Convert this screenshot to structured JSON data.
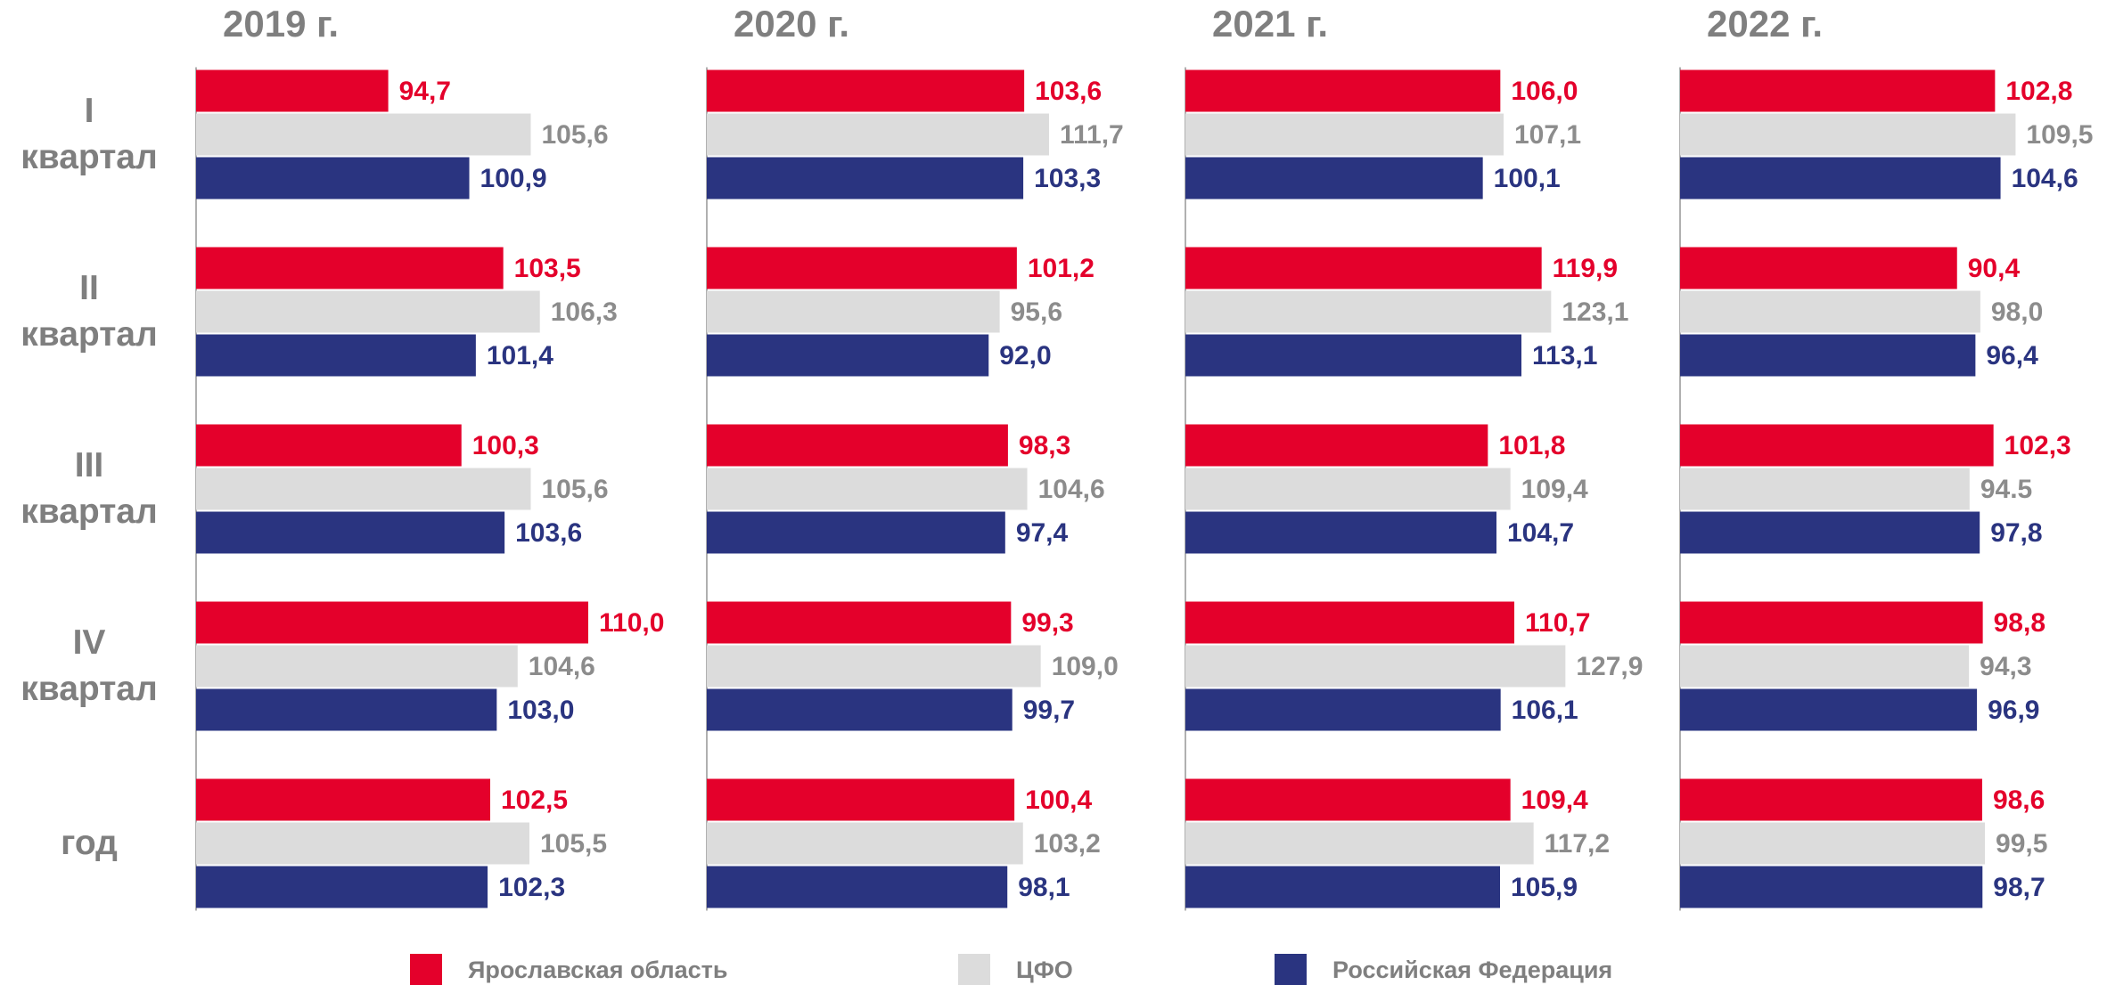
{
  "chart_data": {
    "type": "bar",
    "orientation": "horizontal",
    "categories": [
      "I квартал",
      "II квартал",
      "III квартал",
      "IV квартал",
      "год"
    ],
    "series": [
      {
        "name": "Ярославская область",
        "color": "#e4002b",
        "label_color": "#e4002b"
      },
      {
        "name": "ЦФО",
        "color": "#dcdcdc",
        "label_color": "#8c8c8c"
      },
      {
        "name": "Российская Федерация",
        "color": "#2a3480",
        "label_color": "#2a3480"
      }
    ],
    "panels": [
      {
        "title": "2019 г.",
        "xlim": [
          80,
          110
        ],
        "series": [
          {
            "values": [
              94.7,
              103.5,
              100.3,
              110.0,
              102.5
            ],
            "value_labels": [
              "94,7",
              "103,5",
              "100,3",
              "110,0",
              "102,5"
            ]
          },
          {
            "values": [
              105.6,
              106.3,
              105.6,
              104.6,
              105.5
            ],
            "value_labels": [
              "105,6",
              "106,3",
              "105,6",
              "104,6",
              "105,5"
            ]
          },
          {
            "values": [
              100.9,
              101.4,
              103.6,
              103.0,
              102.3
            ],
            "value_labels": [
              "100,9",
              "101,4",
              "103,6",
              "103,0",
              "102,3"
            ]
          }
        ]
      },
      {
        "title": "2020 г.",
        "xlim": [
          0,
          128
        ],
        "series": [
          {
            "values": [
              103.6,
              101.2,
              98.3,
              99.3,
              100.4
            ],
            "value_labels": [
              "103,6",
              "101,2",
              "98,3",
              "99,3",
              "100,4"
            ]
          },
          {
            "values": [
              111.7,
              95.6,
              104.6,
              109.0,
              103.2
            ],
            "value_labels": [
              "111,7",
              "95,6",
              "104,6",
              "109,0",
              "103,2"
            ]
          },
          {
            "values": [
              103.3,
              92.0,
              97.4,
              99.7,
              98.1
            ],
            "value_labels": [
              "103,3",
              "92,0",
              "97,4",
              "99,7",
              "98,1"
            ]
          }
        ]
      },
      {
        "title": "2021 г.",
        "xlim": [
          0,
          132
        ],
        "series": [
          {
            "values": [
              106.0,
              119.9,
              101.8,
              110.7,
              109.4
            ],
            "value_labels": [
              "106,0",
              "119,9",
              "101,8",
              "110,7",
              "109,4"
            ]
          },
          {
            "values": [
              107.1,
              123.1,
              109.4,
              127.9,
              117.2
            ],
            "value_labels": [
              "107,1",
              "123,1",
              "109,4",
              "127,9",
              "117,2"
            ]
          },
          {
            "values": [
              100.1,
              113.1,
              104.7,
              106.1,
              105.9
            ],
            "value_labels": [
              "100,1",
              "113,1",
              "104,7",
              "106,1",
              "105,9"
            ]
          }
        ]
      },
      {
        "title": "2022 г.",
        "xlim": [
          0,
          128
        ],
        "series": [
          {
            "values": [
              102.8,
              90.4,
              102.3,
              98.8,
              98.6
            ],
            "value_labels": [
              "102,8",
              "90,4",
              "102,3",
              "98,8",
              "98,6"
            ]
          },
          {
            "values": [
              109.5,
              98.0,
              94.5,
              94.3,
              99.5
            ],
            "value_labels": [
              "109,5",
              "98,0",
              "94.5",
              "94,3",
              "99,5"
            ]
          },
          {
            "values": [
              104.6,
              96.4,
              97.8,
              96.9,
              98.7
            ],
            "value_labels": [
              "104,6",
              "96,4",
              "97,8",
              "96,9",
              "98,7"
            ]
          }
        ]
      }
    ]
  }
}
